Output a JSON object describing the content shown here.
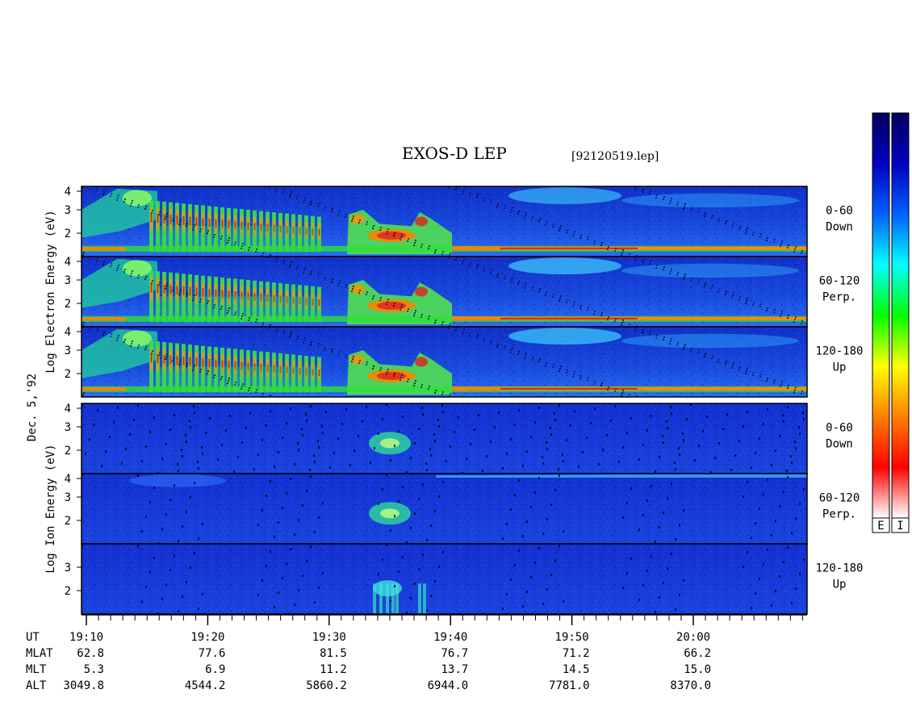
{
  "title": "EXOS-D LEP",
  "filename": "[92120519.lep]",
  "date_label": "Dec. 5,'92",
  "colorbar": {
    "labels": [
      "E",
      "I"
    ],
    "colors": [
      "#ffffff",
      "#ff0000",
      "#ff8000",
      "#ffff00",
      "#00ff00",
      "#00ffff",
      "#0060ff",
      "#0000c0",
      "#000060"
    ]
  },
  "chart_data": {
    "type": "heatmap",
    "x_axis": {
      "label": "UT",
      "range": [
        "19:10",
        "20:09"
      ],
      "ticks": [
        "19:10",
        "19:20",
        "19:30",
        "19:40",
        "19:50",
        "20:00"
      ]
    },
    "groups": [
      {
        "ylabel": [
          "Log",
          "Electron",
          "Energy",
          "(eV)"
        ],
        "panels": [
          {
            "name": "0-60",
            "sub": "Down",
            "yticks": [
              "4",
              "3",
              "2"
            ],
            "ylim": [
              1,
              4
            ]
          },
          {
            "name": "60-120",
            "sub": "Perp.",
            "yticks": [
              "4",
              "3",
              "2"
            ],
            "ylim": [
              1,
              4
            ]
          },
          {
            "name": "120-180",
            "sub": "Up",
            "yticks": [
              "4",
              "3",
              "2"
            ],
            "ylim": [
              1,
              4
            ]
          }
        ]
      },
      {
        "ylabel": [
          "Log",
          "Ion",
          "Energy",
          "(eV)"
        ],
        "panels": [
          {
            "name": "0-60",
            "sub": "Down",
            "yticks": [
              "4",
              "3",
              "2"
            ],
            "ylim": [
              1,
              4
            ]
          },
          {
            "name": "60-120",
            "sub": "Perp.",
            "yticks": [
              "4",
              "3",
              "2"
            ],
            "ylim": [
              1,
              4
            ]
          },
          {
            "name": "120-180",
            "sub": "Up",
            "yticks": [
              "3",
              "2"
            ],
            "ylim": [
              1,
              4
            ]
          }
        ]
      }
    ],
    "ephemeris": {
      "rows": [
        {
          "name": "MLAT",
          "values": [
            "62.8",
            "77.6",
            "81.5",
            "76.7",
            "71.2",
            "66.2"
          ]
        },
        {
          "name": "MLT",
          "values": [
            "5.3",
            "6.9",
            "11.2",
            "13.7",
            "14.5",
            "15.0"
          ]
        },
        {
          "name": "ALT",
          "values": [
            "3049.8",
            "4544.2",
            "5860.2",
            "6944.0",
            "7781.0",
            "8370.0"
          ]
        }
      ]
    }
  }
}
